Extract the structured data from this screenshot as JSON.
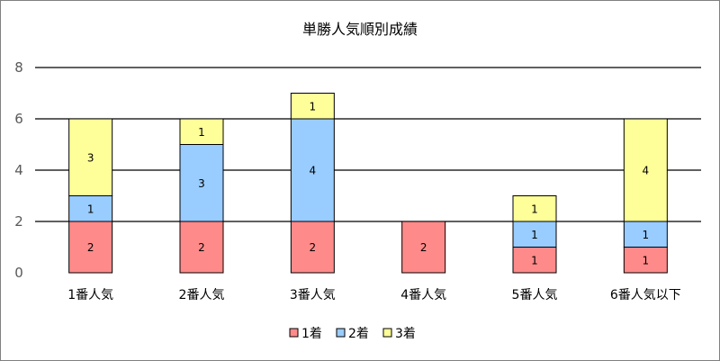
{
  "chart_data": {
    "type": "bar",
    "stacked": true,
    "title": "単勝人気順別成績",
    "categories": [
      "1番人気",
      "2番人気",
      "3番人気",
      "4番人気",
      "5番人気",
      "6番人気以下"
    ],
    "series": [
      {
        "name": "1着",
        "values": [
          2,
          2,
          2,
          2,
          1,
          1
        ],
        "color": "#ff8a8a"
      },
      {
        "name": "2着",
        "values": [
          1,
          3,
          4,
          0,
          1,
          1
        ],
        "color": "#99ccff"
      },
      {
        "name": "3着",
        "values": [
          3,
          1,
          1,
          0,
          1,
          4
        ],
        "color": "#ffff99"
      }
    ],
    "ylim": [
      0,
      8
    ],
    "yticks": [
      0,
      2,
      4,
      6,
      8
    ],
    "grid": true,
    "legend_position": "bottom"
  }
}
